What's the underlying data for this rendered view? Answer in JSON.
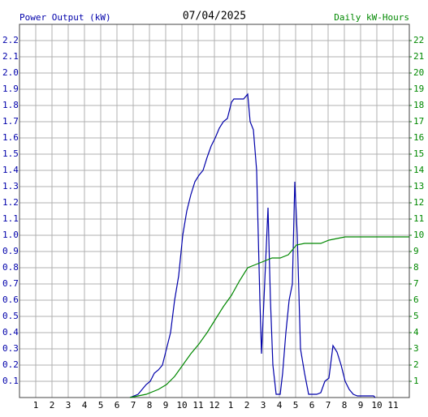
{
  "chart_data": {
    "type": "line",
    "title": "07/04/2025",
    "y_label": "Power Output (kW)",
    "y2_label": "Daily kW-Hours",
    "xlim": [
      0,
      24
    ],
    "xticks": [
      1,
      2,
      3,
      4,
      5,
      6,
      7,
      8,
      9,
      10,
      11,
      12,
      {
        "value": 13,
        "label": "1"
      },
      {
        "value": 14,
        "label": "2"
      },
      {
        "value": 15,
        "label": "3"
      },
      {
        "value": 16,
        "label": "4"
      },
      {
        "value": 17,
        "label": "5"
      },
      {
        "value": 18,
        "label": "6"
      },
      {
        "value": 19,
        "label": "7"
      },
      {
        "value": 20,
        "label": "8"
      },
      {
        "value": 21,
        "label": "9"
      },
      {
        "value": 22,
        "label": "10"
      },
      {
        "value": 23,
        "label": "11"
      }
    ],
    "ylim": [
      0,
      2.3
    ],
    "yticks": [
      0.1,
      0.2,
      0.3,
      0.4,
      0.5,
      0.6,
      0.7,
      0.8,
      0.9,
      {
        "value": 1,
        "label": "1.0"
      },
      1.1,
      1.2,
      1.3,
      1.4,
      1.5,
      1.6,
      1.7,
      1.8,
      1.9,
      {
        "value": 2,
        "label": "2.0"
      },
      2.1,
      2.2
    ],
    "y2lim": [
      0,
      23
    ],
    "y2ticks": [
      1,
      2,
      3,
      4,
      5,
      6,
      7,
      8,
      9,
      10,
      11,
      12,
      13,
      14,
      15,
      16,
      17,
      18,
      19,
      20,
      21,
      22
    ],
    "grid": true,
    "series": [
      {
        "name": "Power Output (kW)",
        "color": "#0000aa",
        "x": [
          6.8,
          7.05,
          7.3,
          7.55,
          7.8,
          8.05,
          8.3,
          8.55,
          8.8,
          9.05,
          9.3,
          9.55,
          9.8,
          10.05,
          10.3,
          10.55,
          10.8,
          11.05,
          11.3,
          11.55,
          11.8,
          12.05,
          12.3,
          12.55,
          12.8,
          13.05,
          13.2,
          13.55,
          13.8,
          14.05,
          14.2,
          14.4,
          14.6,
          14.8,
          14.9,
          15.05,
          15.3,
          15.45,
          15.6,
          15.8,
          16.05,
          16.2,
          16.4,
          16.6,
          16.8,
          16.95,
          17.1,
          17.3,
          17.55,
          17.8,
          18.3,
          18.55,
          18.8,
          19.05,
          19.3,
          19.55,
          19.8,
          20.05,
          20.3,
          20.55,
          20.8,
          21.8,
          21.9
        ],
        "values": [
          0,
          0.01,
          0.02,
          0.05,
          0.08,
          0.1,
          0.15,
          0.17,
          0.2,
          0.3,
          0.4,
          0.6,
          0.75,
          1.0,
          1.15,
          1.25,
          1.33,
          1.37,
          1.4,
          1.48,
          1.55,
          1.6,
          1.66,
          1.7,
          1.72,
          1.82,
          1.84,
          1.84,
          1.84,
          1.87,
          1.7,
          1.65,
          1.4,
          0.6,
          0.27,
          0.6,
          1.17,
          0.6,
          0.2,
          0.02,
          0.02,
          0.15,
          0.4,
          0.6,
          0.7,
          1.33,
          1.0,
          0.3,
          0.15,
          0.02,
          0.02,
          0.03,
          0.1,
          0.12,
          0.32,
          0.28,
          0.2,
          0.1,
          0.05,
          0.02,
          0.01,
          0.01,
          0
        ]
      },
      {
        "name": "Daily kW-Hours",
        "color": "#008800",
        "axis": "y2",
        "x": [
          6.8,
          7.8,
          8.55,
          9.05,
          9.55,
          10.05,
          10.55,
          11.05,
          11.55,
          12.05,
          12.55,
          13.05,
          13.55,
          14.05,
          14.55,
          15.05,
          15.55,
          16.05,
          16.55,
          17.05,
          17.55,
          18.55,
          19.05,
          19.55,
          20.05,
          24
        ],
        "values": [
          0,
          0.2,
          0.5,
          0.8,
          1.3,
          2.0,
          2.7,
          3.3,
          4.0,
          4.8,
          5.6,
          6.3,
          7.2,
          8.0,
          8.2,
          8.4,
          8.6,
          8.6,
          8.8,
          9.4,
          9.5,
          9.5,
          9.7,
          9.8,
          9.9,
          9.9
        ]
      }
    ]
  }
}
